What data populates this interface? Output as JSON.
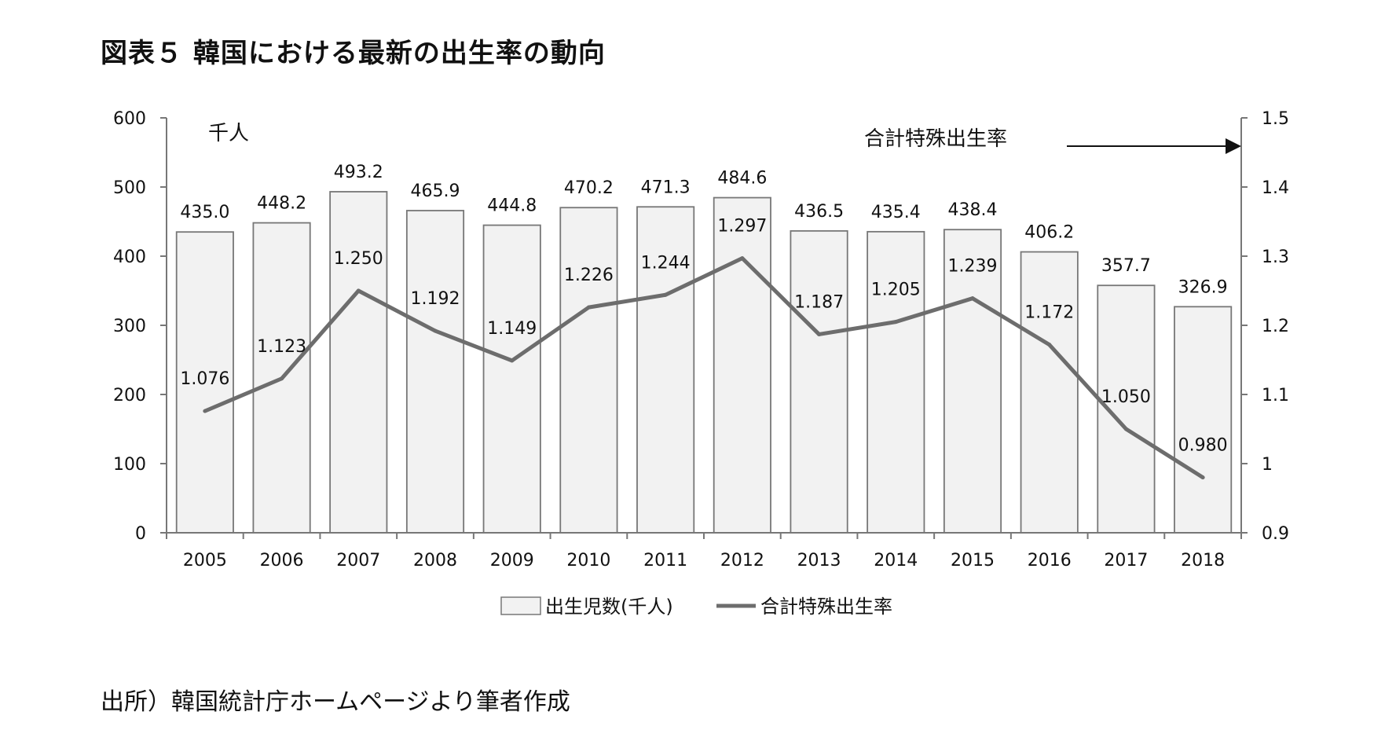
{
  "title": "図表５ 韓国における最新の出生率の動向",
  "source": "出所）韓国統計庁ホームページより筆者作成",
  "chart_data": {
    "type": "bar+line",
    "categories": [
      "2005",
      "2006",
      "2007",
      "2008",
      "2009",
      "2010",
      "2011",
      "2012",
      "2013",
      "2014",
      "2015",
      "2016",
      "2017",
      "2018"
    ],
    "series": [
      {
        "name": "出生児数(千人)",
        "type": "bar",
        "axis": "left",
        "values": [
          435.0,
          448.2,
          493.2,
          465.9,
          444.8,
          470.2,
          471.3,
          484.6,
          436.5,
          435.4,
          438.4,
          406.2,
          357.7,
          326.9
        ],
        "labels": [
          "435.0",
          "448.2",
          "493.2",
          "465.9",
          "444.8",
          "470.2",
          "471.3",
          "484.6",
          "436.5",
          "435.4",
          "438.4",
          "406.2",
          "357.7",
          "326.9"
        ],
        "color": "#f2f2f2",
        "stroke": "#777777"
      },
      {
        "name": "合計特殊出生率",
        "type": "line",
        "axis": "right",
        "values": [
          1.076,
          1.123,
          1.25,
          1.192,
          1.149,
          1.226,
          1.244,
          1.297,
          1.187,
          1.205,
          1.239,
          1.172,
          1.05,
          0.98
        ],
        "labels": [
          "1.076",
          "1.123",
          "1.250",
          "1.192",
          "1.149",
          "1.226",
          "1.244",
          "1.297",
          "1.187",
          "1.205",
          "1.239",
          "1.172",
          "1.050",
          "0.980"
        ],
        "color": "#6d6d6d"
      }
    ],
    "y_left": {
      "unit_label": "千人",
      "ylim": [
        0,
        600
      ],
      "ticks": [
        0,
        100,
        200,
        300,
        400,
        500,
        600
      ],
      "tick_labels": [
        "0",
        "100",
        "200",
        "300",
        "400",
        "500",
        "600"
      ]
    },
    "y_right": {
      "ylim": [
        0.9,
        1.5
      ],
      "ticks": [
        0.9,
        1.0,
        1.1,
        1.2,
        1.3,
        1.4,
        1.5
      ],
      "tick_labels": [
        "0.9",
        "1",
        "1.1",
        "1.2",
        "1.3",
        "1.4",
        "1.5"
      ]
    },
    "annotation": {
      "text": "合計特殊出生率",
      "arrow_direction": "right"
    },
    "grid": false,
    "legend_position": "bottom"
  }
}
